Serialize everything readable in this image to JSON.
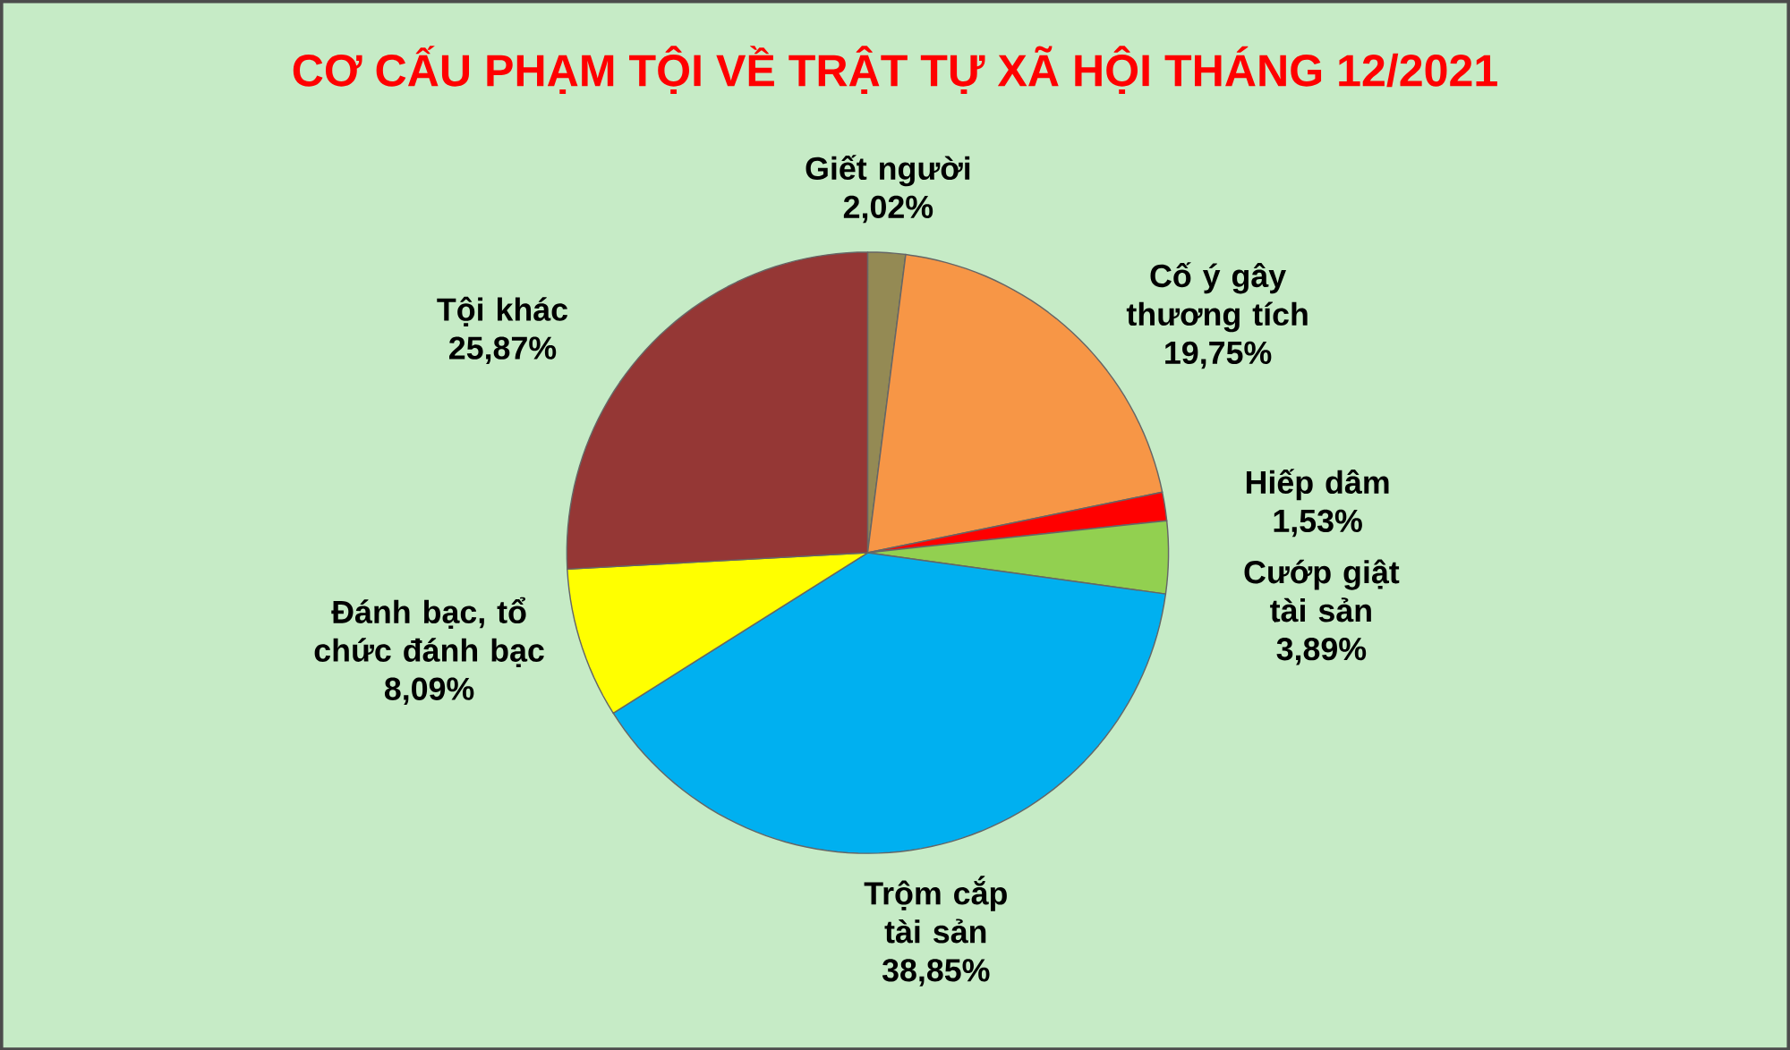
{
  "chart_data": {
    "type": "pie",
    "title": "CƠ CẤU PHẠM TỘI VỀ TRẬT TỰ XÃ HỘI THÁNG 12/2021",
    "categories": [
      "Giết người",
      "Cố ý gây thương tích",
      "Hiếp dâm",
      "Cướp giật tài sản",
      "Trộm cắp tài sản",
      "Đánh bạc, tổ chức đánh bạc",
      "Tội khác"
    ],
    "values": [
      2.02,
      19.75,
      1.53,
      3.89,
      38.85,
      8.09,
      25.87
    ],
    "colors": [
      "#948a54",
      "#f79646",
      "#ff0000",
      "#92d050",
      "#00b0f0",
      "#ffff00",
      "#953735"
    ],
    "value_labels": [
      "2,02%",
      "19,75%",
      "1,53%",
      "3,89%",
      "38,85%",
      "8,09%",
      "25,87%"
    ]
  }
}
